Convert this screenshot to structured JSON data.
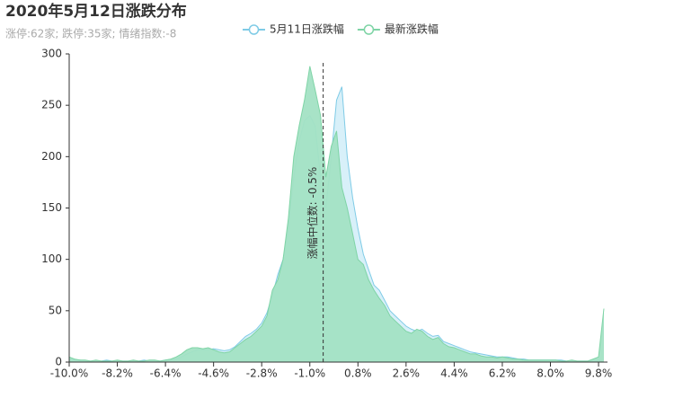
{
  "chart_data": {
    "type": "area",
    "title": "2020年5月12日涨跌分布",
    "subtitle": "涨停:62家; 跌停:35家; 情绪指数:-8",
    "x": [
      -10,
      -9.8,
      -9.6,
      -9.4,
      -9.2,
      -9,
      -8.8,
      -8.6,
      -8.4,
      -8.2,
      -8,
      -7.8,
      -7.6,
      -7.4,
      -7.2,
      -7,
      -6.8,
      -6.6,
      -6.4,
      -6.2,
      -6,
      -5.8,
      -5.6,
      -5.4,
      -5.2,
      -5,
      -4.8,
      -4.6,
      -4.4,
      -4.2,
      -4,
      -3.8,
      -3.6,
      -3.4,
      -3.2,
      -3,
      -2.8,
      -2.6,
      -2.4,
      -2.2,
      -2,
      -1.8,
      -1.6,
      -1.4,
      -1.2,
      -1,
      -0.8,
      -0.6,
      -0.4,
      -0.2,
      0,
      0.2,
      0.4,
      0.6,
      0.8,
      1,
      1.2,
      1.4,
      1.6,
      1.8,
      2,
      2.2,
      2.4,
      2.6,
      2.8,
      3,
      3.2,
      3.4,
      3.6,
      3.8,
      4,
      4.2,
      4.4,
      4.6,
      4.8,
      5,
      5.2,
      5.4,
      5.6,
      5.8,
      6,
      6.2,
      6.4,
      6.6,
      6.8,
      7,
      7.2,
      7.4,
      7.6,
      7.8,
      8,
      8.2,
      8.4,
      8.6,
      8.8,
      9,
      9.2,
      9.4,
      9.6,
      9.8,
      10
    ],
    "series": [
      {
        "name": "5月11日涨跌幅",
        "color": "#7fcbe6",
        "fill": "#d4eef8",
        "values": [
          3,
          2,
          2,
          1,
          1,
          1,
          1,
          2,
          1,
          1,
          1,
          1,
          1,
          1,
          2,
          1,
          1,
          1,
          2,
          2,
          3,
          5,
          8,
          10,
          12,
          12,
          12,
          13,
          12,
          11,
          12,
          15,
          20,
          25,
          28,
          32,
          38,
          48,
          65,
          85,
          100,
          130,
          180,
          215,
          235,
          240,
          230,
          180,
          150,
          200,
          255,
          268,
          200,
          160,
          130,
          105,
          90,
          75,
          70,
          60,
          50,
          45,
          40,
          35,
          32,
          30,
          32,
          28,
          25,
          26,
          20,
          18,
          16,
          14,
          12,
          10,
          9,
          8,
          7,
          6,
          5,
          5,
          5,
          4,
          3,
          3,
          2,
          2,
          2,
          2,
          2,
          2,
          2,
          1,
          1,
          1,
          1,
          1,
          1,
          2,
          0
        ]
      },
      {
        "name": "最新涨跌幅",
        "color": "#7fd4a6",
        "fill": "#a3e2c4",
        "values": [
          5,
          3,
          2,
          2,
          1,
          2,
          1,
          1,
          1,
          2,
          1,
          1,
          2,
          1,
          1,
          2,
          2,
          1,
          2,
          3,
          5,
          8,
          12,
          14,
          14,
          13,
          14,
          12,
          10,
          9,
          10,
          14,
          18,
          22,
          25,
          30,
          35,
          45,
          70,
          80,
          100,
          140,
          200,
          230,
          255,
          288,
          265,
          240,
          180,
          210,
          225,
          170,
          150,
          125,
          100,
          95,
          80,
          70,
          62,
          55,
          45,
          40,
          35,
          30,
          28,
          32,
          30,
          25,
          22,
          24,
          18,
          15,
          14,
          12,
          10,
          8,
          8,
          6,
          5,
          5,
          4,
          5,
          4,
          3,
          3,
          2,
          2,
          2,
          2,
          2,
          2,
          2,
          1,
          1,
          2,
          1,
          1,
          1,
          3,
          5,
          52
        ]
      }
    ],
    "xlim": [
      -10,
      10
    ],
    "xticks": [
      {
        "value": -10,
        "label": "-10.0%"
      },
      {
        "value": -8.2,
        "label": "-8.2%"
      },
      {
        "value": -6.4,
        "label": "-6.4%"
      },
      {
        "value": -4.6,
        "label": "-4.6%"
      },
      {
        "value": -2.8,
        "label": "-2.8%"
      },
      {
        "value": -1,
        "label": "-1.0%"
      },
      {
        "value": 0.8,
        "label": "0.8%"
      },
      {
        "value": 2.6,
        "label": "2.6%"
      },
      {
        "value": 4.4,
        "label": "4.4%"
      },
      {
        "value": 6.2,
        "label": "6.2%"
      },
      {
        "value": 8,
        "label": "8.0%"
      },
      {
        "value": 9.8,
        "label": "9.8%"
      }
    ],
    "ylim": [
      0,
      300
    ],
    "yticks": [
      0,
      50,
      100,
      150,
      200,
      250,
      300
    ],
    "median_line": {
      "value": -0.5,
      "label": "涨幅中位数: -0.5%"
    }
  }
}
